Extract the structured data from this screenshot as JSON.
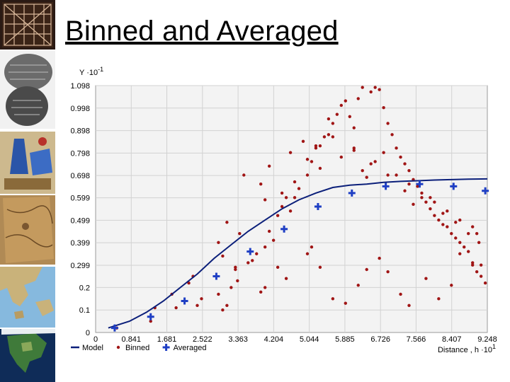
{
  "slide": {
    "title": "Binned and Averaged"
  },
  "thumbnails": [
    {
      "name": "ancient-grid-tablet-image"
    },
    {
      "name": "clay-tablet-image"
    },
    {
      "name": "illuminated-map-image"
    },
    {
      "name": "parchment-map-image"
    },
    {
      "name": "greece-map-image"
    },
    {
      "name": "north-america-globe-image"
    }
  ],
  "chart_data": {
    "type": "scatter",
    "ylabel_base": "Y ·10",
    "ylabel_exp": "-1",
    "xlabel_base": "Distance , h ·10",
    "xlabel_exp": "1",
    "xlim": [
      0,
      9.248
    ],
    "ylim": [
      0,
      1.098
    ],
    "x_ticks": [
      "0",
      "0.841",
      "1.681",
      "2.522",
      "3.363",
      "4.204",
      "5.044",
      "5.885",
      "6.726",
      "7.566",
      "8.407",
      "9.248"
    ],
    "y_ticks": [
      "0",
      "0.1",
      "0.2",
      "0.299",
      "0.399",
      "0.499",
      "0.599",
      "0.698",
      "0.798",
      "0.898",
      "0.998",
      "1.098"
    ],
    "grid": true,
    "legend": [
      {
        "name": "Model",
        "symbol": "line"
      },
      {
        "name": "Binned",
        "symbol": "dot"
      },
      {
        "name": "Averaged",
        "symbol": "cross"
      }
    ],
    "colors": {
      "model": "#0b1f7a",
      "binned": "#a01515",
      "averaged": "#1f3fc4"
    },
    "model": {
      "x": [
        0.3,
        0.8,
        1.2,
        1.6,
        2.0,
        2.4,
        2.8,
        3.2,
        3.6,
        4.0,
        4.4,
        4.8,
        5.2,
        5.6,
        6.0,
        6.4,
        6.8,
        7.2,
        7.6,
        8.0,
        8.4,
        8.8,
        9.248
      ],
      "y": [
        0.02,
        0.05,
        0.09,
        0.14,
        0.2,
        0.26,
        0.33,
        0.39,
        0.45,
        0.5,
        0.55,
        0.59,
        0.62,
        0.645,
        0.655,
        0.66,
        0.668,
        0.672,
        0.675,
        0.678,
        0.68,
        0.682,
        0.683
      ]
    },
    "averaged": {
      "x": [
        0.45,
        1.3,
        2.1,
        2.85,
        3.65,
        4.45,
        5.25,
        6.05,
        6.85,
        7.65,
        8.45,
        9.2
      ],
      "y": [
        0.02,
        0.07,
        0.14,
        0.25,
        0.36,
        0.46,
        0.56,
        0.62,
        0.65,
        0.66,
        0.65,
        0.63
      ]
    },
    "binned": {
      "x": [
        0.5,
        1.3,
        1.4,
        1.8,
        1.9,
        2.2,
        2.3,
        2.4,
        2.5,
        2.9,
        3.0,
        3.1,
        3.2,
        3.3,
        3.35,
        3.7,
        3.8,
        4.0,
        4.1,
        4.2,
        4.3,
        4.4,
        4.5,
        4.6,
        4.7,
        4.8,
        5.0,
        5.1,
        5.2,
        5.3,
        5.4,
        5.5,
        5.6,
        5.7,
        5.8,
        5.9,
        6.0,
        6.1,
        6.2,
        6.3,
        6.5,
        6.6,
        6.7,
        6.8,
        6.9,
        7.0,
        7.1,
        7.2,
        7.3,
        7.4,
        7.5,
        7.6,
        7.7,
        7.8,
        7.9,
        8.0,
        8.1,
        8.2,
        8.3,
        8.4,
        8.5,
        8.6,
        8.7,
        8.8,
        8.9,
        9.0,
        9.1,
        9.2,
        2.9,
        3.0,
        3.3,
        3.6,
        3.9,
        4.0,
        4.3,
        4.5,
        5.0,
        5.1,
        5.3,
        5.6,
        5.9,
        6.2,
        6.4,
        6.7,
        6.9,
        7.2,
        7.4,
        7.8,
        8.1,
        8.4,
        8.6,
        8.9,
        9.1,
        3.5,
        3.9,
        4.1,
        4.6,
        4.9,
        5.0,
        5.2,
        5.5,
        5.8,
        6.1,
        6.3,
        6.5,
        6.8,
        7.1,
        7.4,
        7.7,
        8.0,
        8.3,
        8.6,
        8.9,
        9.0,
        3.1,
        3.4,
        4.0,
        4.4,
        4.7,
        5.3,
        5.6,
        6.1,
        6.4,
        6.6,
        6.9,
        7.3,
        7.5,
        7.9,
        8.2,
        8.5,
        8.8,
        9.05
      ],
      "y": [
        0.02,
        0.05,
        0.11,
        0.17,
        0.11,
        0.22,
        0.25,
        0.12,
        0.15,
        0.17,
        0.1,
        0.12,
        0.2,
        0.29,
        0.23,
        0.32,
        0.35,
        0.38,
        0.45,
        0.41,
        0.52,
        0.56,
        0.6,
        0.54,
        0.6,
        0.64,
        0.7,
        0.76,
        0.82,
        0.83,
        0.87,
        0.95,
        0.93,
        0.97,
        1.01,
        1.03,
        0.96,
        0.91,
        1.04,
        1.09,
        1.07,
        1.09,
        1.08,
        1.0,
        0.93,
        0.88,
        0.82,
        0.78,
        0.75,
        0.72,
        0.68,
        0.65,
        0.6,
        0.58,
        0.55,
        0.52,
        0.5,
        0.48,
        0.47,
        0.44,
        0.42,
        0.4,
        0.38,
        0.36,
        0.3,
        0.27,
        0.25,
        0.22,
        0.4,
        0.34,
        0.28,
        0.31,
        0.18,
        0.2,
        0.29,
        0.24,
        0.35,
        0.38,
        0.29,
        0.15,
        0.13,
        0.21,
        0.28,
        0.33,
        0.27,
        0.17,
        0.12,
        0.24,
        0.15,
        0.21,
        0.35,
        0.31,
        0.3,
        0.7,
        0.66,
        0.74,
        0.8,
        0.85,
        0.77,
        0.83,
        0.88,
        0.78,
        0.81,
        0.72,
        0.75,
        0.8,
        0.7,
        0.66,
        0.62,
        0.58,
        0.54,
        0.5,
        0.47,
        0.44,
        0.49,
        0.44,
        0.59,
        0.62,
        0.67,
        0.73,
        0.87,
        0.82,
        0.69,
        0.76,
        0.7,
        0.63,
        0.57,
        0.6,
        0.53,
        0.49,
        0.44,
        0.4
      ]
    }
  }
}
